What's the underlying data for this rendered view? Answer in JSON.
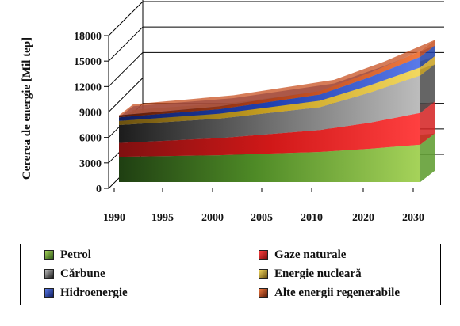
{
  "chart_data": {
    "type": "area",
    "stacked": true,
    "three_d": true,
    "ylabel": "Cererea de energie [Mil tep]",
    "xlabel": "",
    "ylim": [
      0,
      18000
    ],
    "yticks": [
      0,
      3000,
      6000,
      9000,
      12000,
      15000,
      18000
    ],
    "ytick_labels": [
      "0",
      "3000",
      "6000",
      "9000",
      "12000",
      "15000",
      "18000"
    ],
    "x": [
      "1990",
      "1995",
      "2000",
      "2005",
      "2010",
      "2020",
      "2030"
    ],
    "grid": true,
    "legend_position": "bottom",
    "series": [
      {
        "name": "Petrol",
        "values": [
          3100,
          3200,
          3300,
          3500,
          3700,
          4100,
          4600
        ],
        "color": "#5a9a2a"
      },
      {
        "name": "Gaze naturale",
        "values": [
          1700,
          1900,
          2100,
          2400,
          2700,
          3200,
          3900
        ],
        "color": "#d42020"
      },
      {
        "name": "Cărbune",
        "values": [
          2200,
          2300,
          2400,
          2600,
          2800,
          3700,
          4600
        ],
        "color": "#4a4a4a"
      },
      {
        "name": "Energie nucleară",
        "values": [
          500,
          550,
          600,
          700,
          800,
          900,
          1000
        ],
        "color": "#c8a020"
      },
      {
        "name": "Hidroenergie",
        "values": [
          450,
          500,
          550,
          650,
          750,
          1000,
          1300
        ],
        "color": "#2040a8"
      },
      {
        "name": "Alte energii regenerabile",
        "values": [
          250,
          300,
          350,
          400,
          450,
          550,
          700
        ],
        "color": "#c85020"
      }
    ]
  }
}
